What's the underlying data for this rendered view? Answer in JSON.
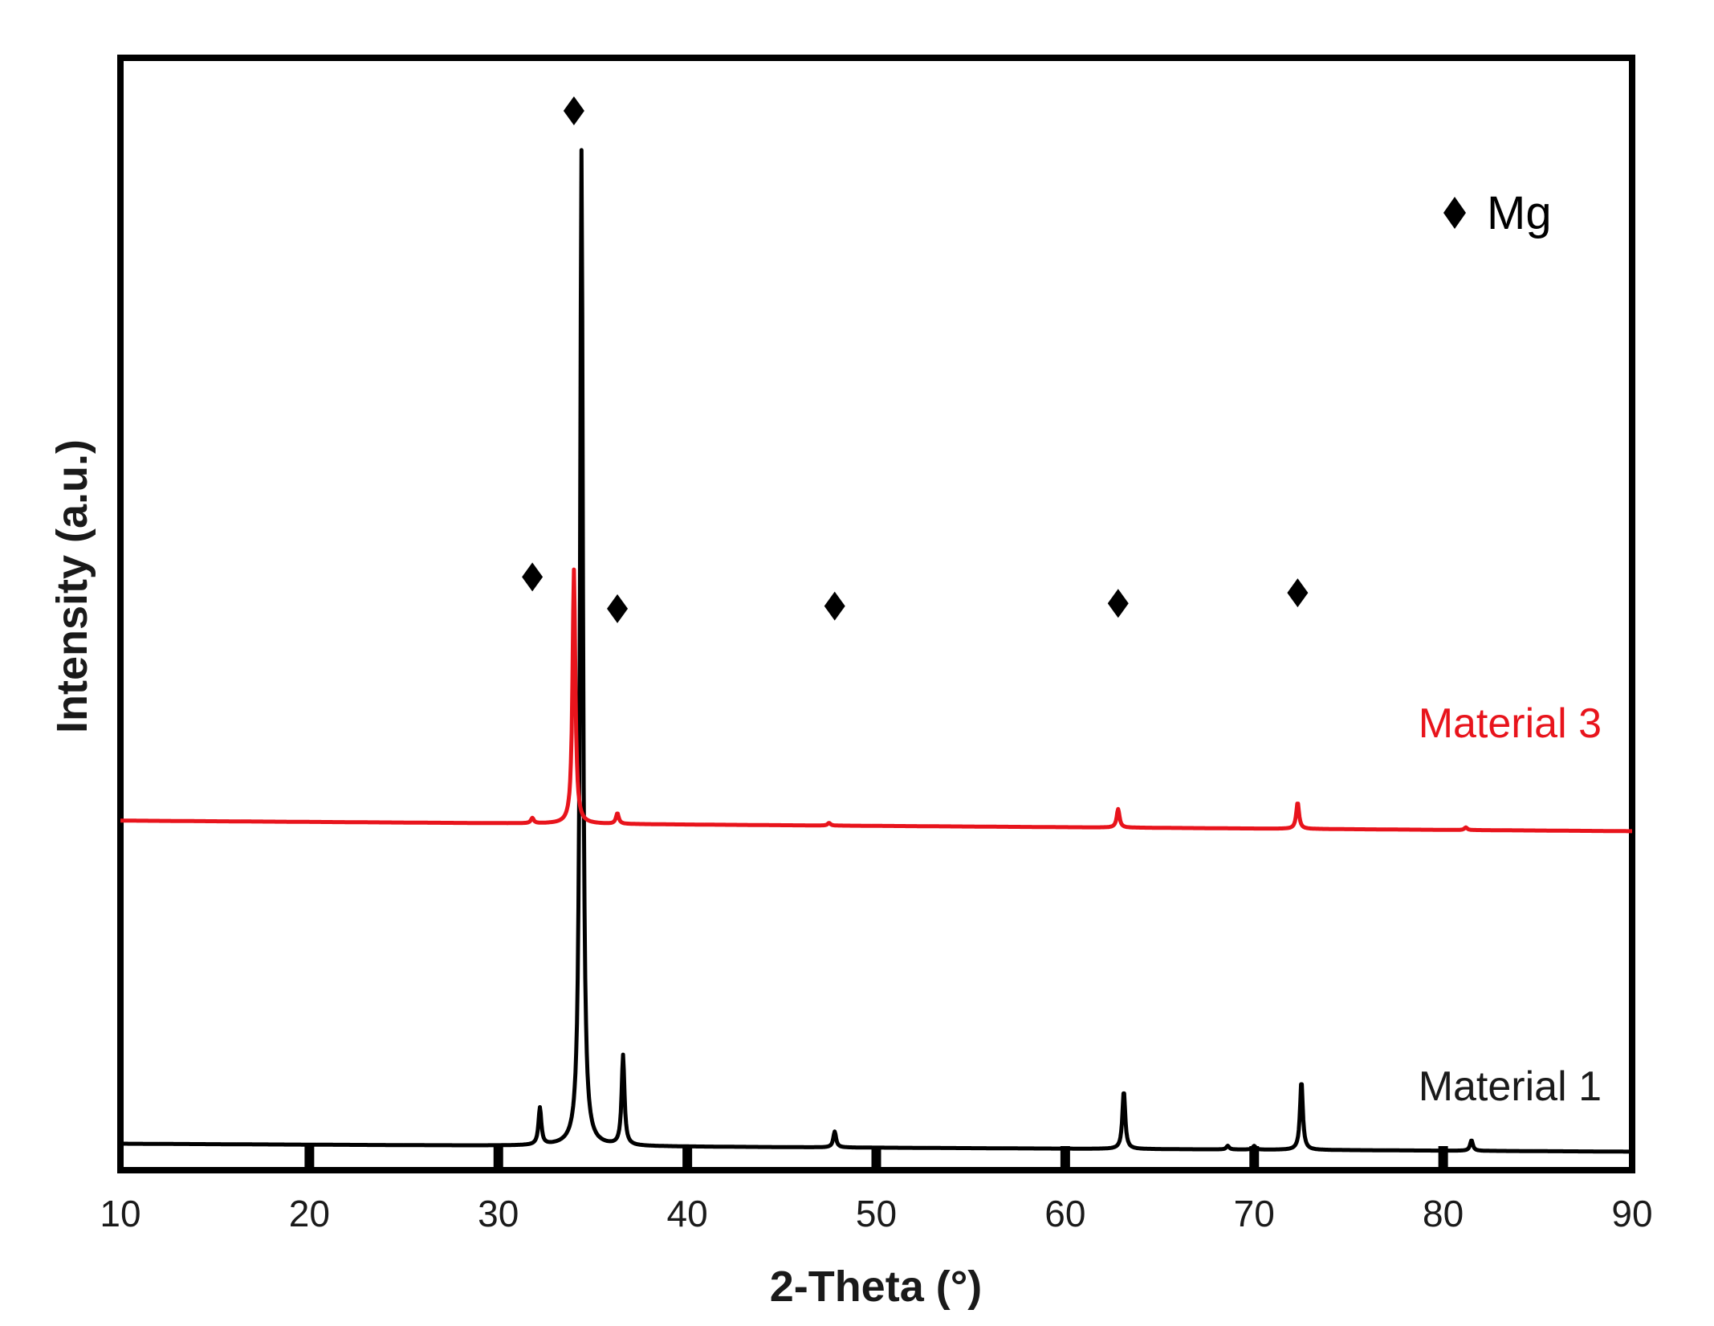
{
  "chart_data": {
    "type": "line",
    "xlabel": "2-Theta (°)",
    "ylabel": "Intensity (a.u.)",
    "xlim": [
      10,
      90
    ],
    "xticks": [
      10,
      20,
      30,
      40,
      50,
      60,
      70,
      80,
      90
    ],
    "yticks_shown": false,
    "grid": false,
    "legend": {
      "label": "Mg",
      "marker": "diamond",
      "placement": "top-right"
    },
    "series": [
      {
        "name": "Material 1",
        "color": "#000000",
        "baseline": 5,
        "drift": -1.5,
        "peaks": [
          {
            "x": 32.2,
            "height": 7
          },
          {
            "x": 34.4,
            "height": 188
          },
          {
            "x": 36.6,
            "height": 17
          },
          {
            "x": 47.8,
            "height": 3
          },
          {
            "x": 63.1,
            "height": 11
          },
          {
            "x": 68.6,
            "height": 0.7
          },
          {
            "x": 70.0,
            "height": 0.7
          },
          {
            "x": 72.5,
            "height": 13
          },
          {
            "x": 81.5,
            "height": 2
          }
        ]
      },
      {
        "name": "Material 3",
        "color": "#e8141c",
        "baseline": 66,
        "drift": -2,
        "peaks": [
          {
            "x": 31.8,
            "height": 1
          },
          {
            "x": 34.0,
            "height": 48
          },
          {
            "x": 36.3,
            "height": 2
          },
          {
            "x": 47.5,
            "height": 0.5
          },
          {
            "x": 62.8,
            "height": 3.5
          },
          {
            "x": 72.3,
            "height": 5
          },
          {
            "x": 81.2,
            "height": 0.5
          }
        ]
      }
    ],
    "markers": [
      {
        "x": 34.0,
        "y": 200
      },
      {
        "x": 31.8,
        "y": 112
      },
      {
        "x": 36.3,
        "y": 106
      },
      {
        "x": 47.8,
        "y": 106.5
      },
      {
        "x": 62.8,
        "y": 107
      },
      {
        "x": 72.3,
        "y": 109
      }
    ]
  }
}
